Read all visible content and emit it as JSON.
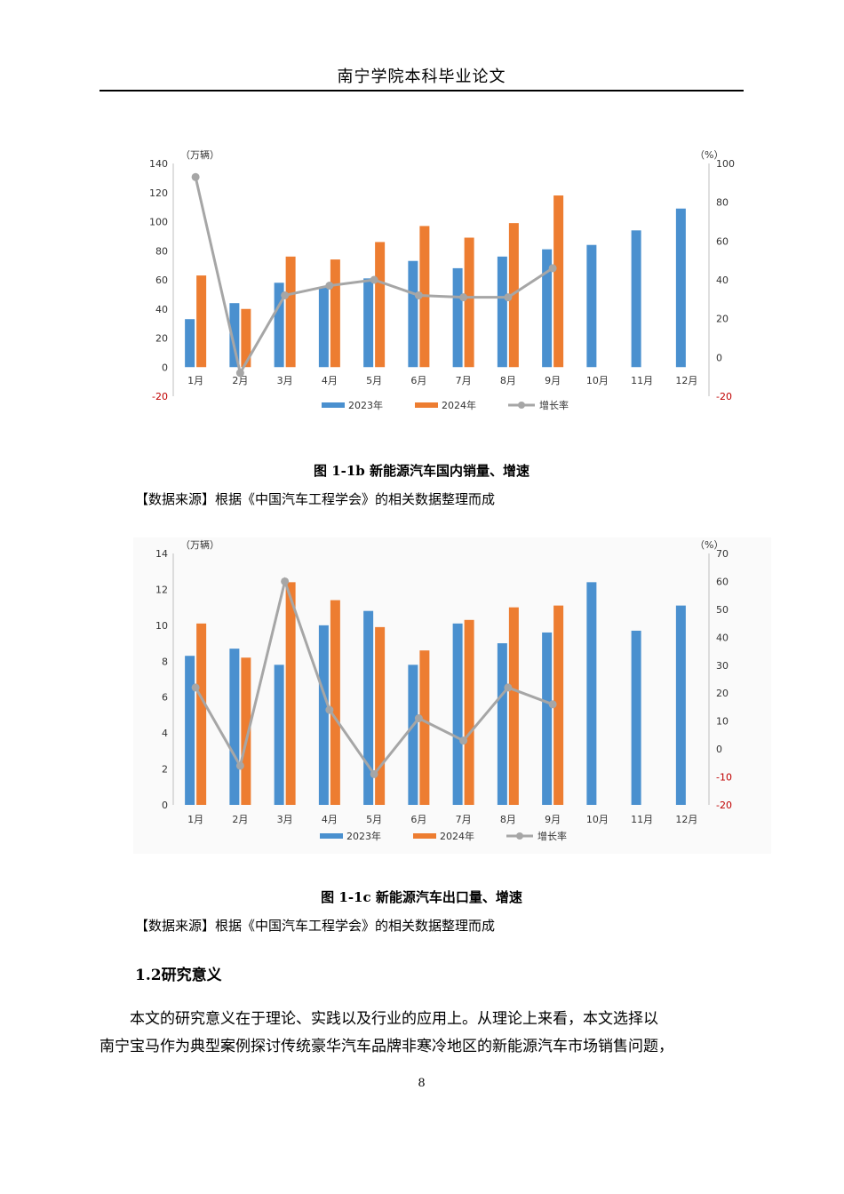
{
  "header": {
    "title": "南宁学院本科毕业论文"
  },
  "figures": [
    {
      "caption": "图 1-1b  新能源汽车国内销量、增速",
      "source": "【数据来源】根据《中国汽车工程学会》的相关数据整理而成"
    },
    {
      "caption": "图 1-1c  新能源汽车出口量、增速",
      "source": "【数据来源】根据《中国汽车工程学会》的相关数据整理而成"
    }
  ],
  "section_heading": "1.2研究意义",
  "paragraph_lines": [
    "　　本文的研究意义在于理论、实践以及行业的应用上。从理论上来看，本文选择以",
    "南宁宝马作为典型案例探讨传统豪华汽车品牌非寒冷地区的新能源汽车市场销售问题，"
  ],
  "page_number": "8",
  "colors": {
    "series_2023": "#4a90cf",
    "series_2024": "#ed7d31",
    "growth": "#a6a6a6",
    "negative_tick": "#c00000"
  },
  "chart_data": [
    {
      "type": "bar",
      "categories": [
        "1月",
        "2月",
        "3月",
        "4月",
        "5月",
        "6月",
        "7月",
        "8月",
        "9月",
        "10月",
        "11月",
        "12月"
      ],
      "series": [
        {
          "name": "2023年",
          "values": [
            33,
            44,
            58,
            55,
            61,
            73,
            68,
            76,
            81,
            84,
            94,
            109
          ]
        },
        {
          "name": "2024年",
          "values": [
            63,
            40,
            76,
            74,
            86,
            97,
            89,
            99,
            118,
            null,
            null,
            null
          ]
        },
        {
          "name": "增长率",
          "type": "line",
          "axis": "right",
          "values": [
            93,
            -8,
            32,
            37,
            40,
            32,
            31,
            31,
            46,
            null,
            null,
            null
          ]
        }
      ],
      "ylabel": "（万辆）",
      "y2label": "（%）",
      "ylim": [
        -20,
        140
      ],
      "yticks": [
        -20,
        0,
        20,
        40,
        60,
        80,
        100,
        120,
        140
      ],
      "y2lim": [
        -20,
        100
      ],
      "y2ticks": [
        -20,
        0,
        20,
        40,
        60,
        80,
        100
      ],
      "legend": "bottom"
    },
    {
      "type": "bar",
      "categories": [
        "1月",
        "2月",
        "3月",
        "4月",
        "5月",
        "6月",
        "7月",
        "8月",
        "9月",
        "10月",
        "11月",
        "12月"
      ],
      "series": [
        {
          "name": "2023年",
          "values": [
            8.3,
            8.7,
            7.8,
            10.0,
            10.8,
            7.8,
            10.1,
            9.0,
            9.6,
            12.4,
            9.7,
            11.1
          ]
        },
        {
          "name": "2024年",
          "values": [
            10.1,
            8.2,
            12.4,
            11.4,
            9.9,
            8.6,
            10.3,
            11.0,
            11.1,
            null,
            null,
            null
          ]
        },
        {
          "name": "增长率",
          "type": "line",
          "axis": "right",
          "values": [
            22,
            -6,
            60,
            14,
            -9,
            11,
            3,
            22,
            16,
            null,
            null,
            null
          ]
        }
      ],
      "ylabel": "（万辆）",
      "y2label": "（%）",
      "ylim": [
        0,
        14
      ],
      "yticks": [
        0,
        2,
        4,
        6,
        8,
        10,
        12,
        14
      ],
      "y2lim": [
        -20,
        70
      ],
      "y2ticks": [
        -20,
        -10,
        0,
        10,
        20,
        30,
        40,
        50,
        60,
        70
      ],
      "legend": "bottom"
    }
  ]
}
